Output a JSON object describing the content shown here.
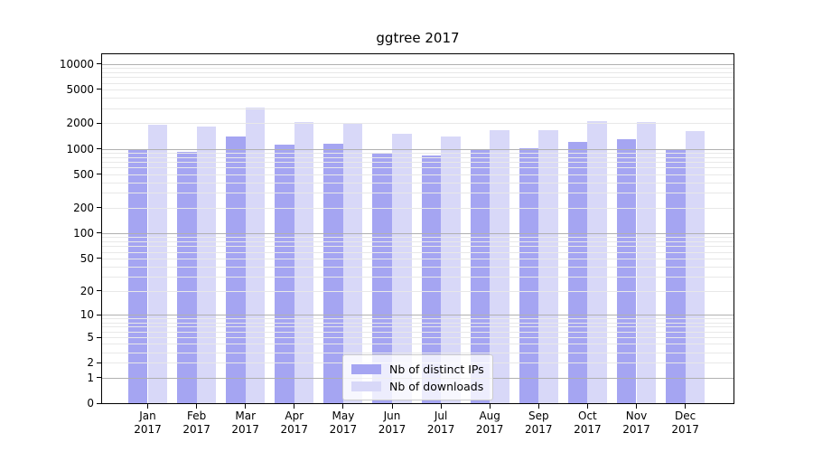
{
  "title": "ggtree 2017",
  "chart_data": {
    "type": "bar",
    "title": "ggtree 2017",
    "categories": [
      "Jan 2017",
      "Feb 2017",
      "Mar 2017",
      "Apr 2017",
      "May 2017",
      "Jun 2017",
      "Jul 2017",
      "Aug 2017",
      "Sep 2017",
      "Oct 2017",
      "Nov 2017",
      "Dec 2017"
    ],
    "series": [
      {
        "name": "Nb of distinct IPs",
        "color": "#a5a5f2",
        "values": [
          970,
          925,
          1395,
          1125,
          1155,
          905,
          830,
          960,
          1010,
          1200,
          1305,
          960
        ]
      },
      {
        "name": "Nb of downloads",
        "color": "#d8d8f8",
        "values": [
          1940,
          1820,
          3090,
          2085,
          1950,
          1490,
          1395,
          1670,
          1655,
          2115,
          2050,
          1615
        ]
      }
    ],
    "yscale": "log1p",
    "y_ticks": [
      0,
      1,
      2,
      5,
      10,
      20,
      50,
      100,
      200,
      500,
      1000,
      2000,
      5000,
      10000
    ],
    "ylim": [
      0,
      13000
    ],
    "grid": "on",
    "major_grid_color": "#b0b0b0",
    "minor_grid_color": "#e8e8e8",
    "axis_color": "#000000",
    "legend_position": "lower center"
  }
}
